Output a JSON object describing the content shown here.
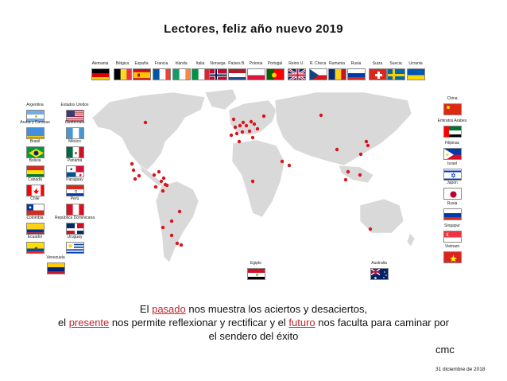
{
  "title": "Lectores, feliz año nuevo 2019",
  "flags": [
    {
      "name": "Alemania",
      "flag": "de"
    },
    {
      "name": "Bélgica",
      "flag": "be"
    },
    {
      "name": "España",
      "flag": "es"
    },
    {
      "name": "Francia",
      "flag": "fr"
    },
    {
      "name": "Irlanda",
      "flag": "ie"
    },
    {
      "name": "Italia",
      "flag": "it"
    },
    {
      "name": "Noruega",
      "flag": "no"
    },
    {
      "name": "Países B.",
      "flag": "nl"
    },
    {
      "name": "Polonia",
      "flag": "pl"
    },
    {
      "name": "Portugal",
      "flag": "pt"
    },
    {
      "name": "Reino U.",
      "flag": "gb"
    },
    {
      "name": "R. Checa",
      "flag": "cz"
    },
    {
      "name": "Rumania",
      "flag": "ro"
    },
    {
      "name": "Rusia",
      "flag": "ru"
    },
    {
      "name": "Suiza",
      "flag": "ch"
    },
    {
      "name": "Suecia",
      "flag": "se"
    },
    {
      "name": "Ucrania",
      "flag": "ua"
    },
    {
      "name": "Argentina",
      "flag": "ar"
    },
    {
      "name": "Estados Unidos",
      "flag": "us"
    },
    {
      "name": "Aruba y Curazao",
      "flag": "aw"
    },
    {
      "name": "Guatemala",
      "flag": "gt"
    },
    {
      "name": "Brasil",
      "flag": "br"
    },
    {
      "name": "México",
      "flag": "mx"
    },
    {
      "name": "Bolivia",
      "flag": "bo"
    },
    {
      "name": "Panamá",
      "flag": "pa"
    },
    {
      "name": "Canadá",
      "flag": "ca"
    },
    {
      "name": "Paraguay",
      "flag": "py"
    },
    {
      "name": "Chile",
      "flag": "cl"
    },
    {
      "name": "Perú",
      "flag": "pe"
    },
    {
      "name": "Colombia",
      "flag": "co"
    },
    {
      "name": "República Dominicana",
      "flag": "do"
    },
    {
      "name": "Ecuador",
      "flag": "ec"
    },
    {
      "name": "Uruguay",
      "flag": "uy"
    },
    {
      "name": "Venezuela",
      "flag": "ve"
    },
    {
      "name": "China",
      "flag": "cn"
    },
    {
      "name": "Emiratos Arabes",
      "flag": "ae"
    },
    {
      "name": "Filipinas",
      "flag": "ph"
    },
    {
      "name": "Israel",
      "flag": "il"
    },
    {
      "name": "Japón",
      "flag": "jp"
    },
    {
      "name": "Rusia",
      "flag": "ru"
    },
    {
      "name": "Singapur",
      "flag": "sg"
    },
    {
      "name": "Vietnam",
      "flag": "vn"
    },
    {
      "name": "Egipto",
      "flag": "eg"
    },
    {
      "name": "Australia",
      "flag": "au"
    }
  ],
  "quote": {
    "line1_a": "El ",
    "line1_word": "pasado",
    "line1_b": " nos muestra los aciertos y desaciertos,",
    "line2_a": "el ",
    "line2_word1": "presente",
    "line2_b": " nos permite reflexionar y rectificar y el ",
    "line2_word2": "futuro",
    "line2_c": " nos faculta para caminar por",
    "line3": "el sendero del éxito"
  },
  "signature": "cmc",
  "date": "31 diciembre de 2018"
}
